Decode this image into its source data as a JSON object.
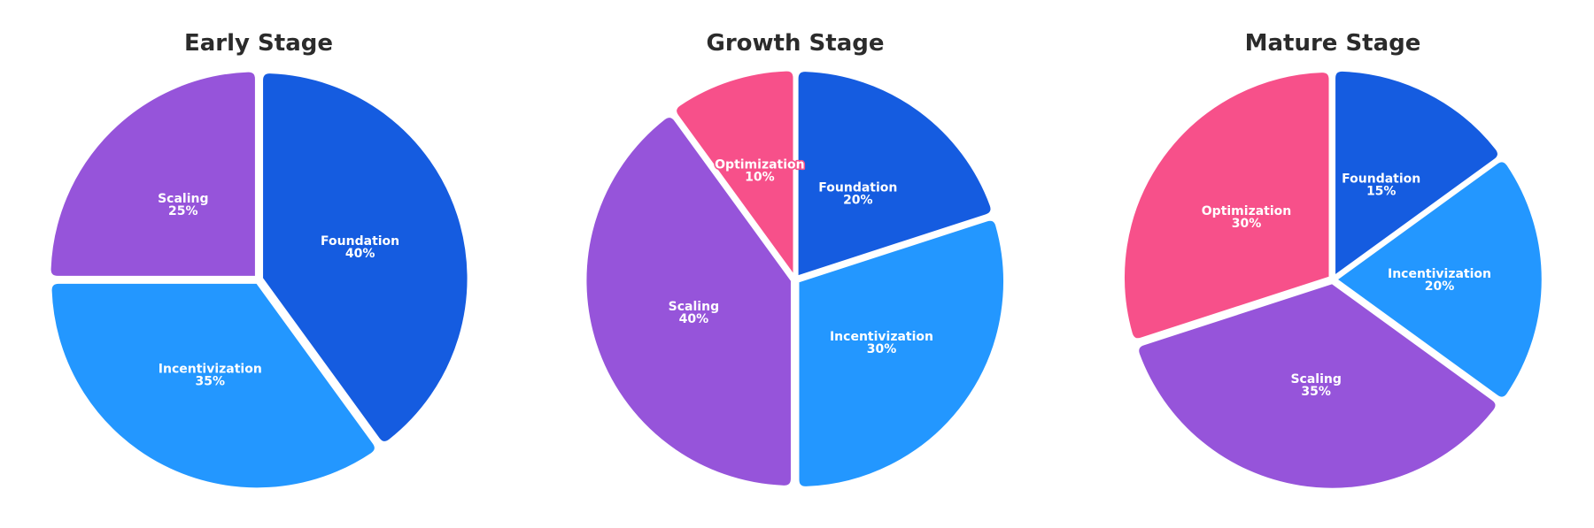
{
  "colors": {
    "Foundation": "#155ce0",
    "Incentivization": "#2397ff",
    "Scaling": "#9654da",
    "Optimization": "#f7508a"
  },
  "chart_data": [
    {
      "type": "pie",
      "title": "Early Stage",
      "slices": [
        {
          "label": "Foundation",
          "value": 40
        },
        {
          "label": "Incentivization",
          "value": 35
        },
        {
          "label": "Scaling",
          "value": 25
        }
      ]
    },
    {
      "type": "pie",
      "title": "Growth Stage",
      "slices": [
        {
          "label": "Foundation",
          "value": 20
        },
        {
          "label": "Incentivization",
          "value": 30
        },
        {
          "label": "Scaling",
          "value": 40
        },
        {
          "label": "Optimization",
          "value": 10
        }
      ]
    },
    {
      "type": "pie",
      "title": "Mature Stage",
      "slices": [
        {
          "label": "Foundation",
          "value": 15
        },
        {
          "label": "Incentivization",
          "value": 20
        },
        {
          "label": "Scaling",
          "value": 35
        },
        {
          "label": "Optimization",
          "value": 30
        }
      ]
    }
  ]
}
